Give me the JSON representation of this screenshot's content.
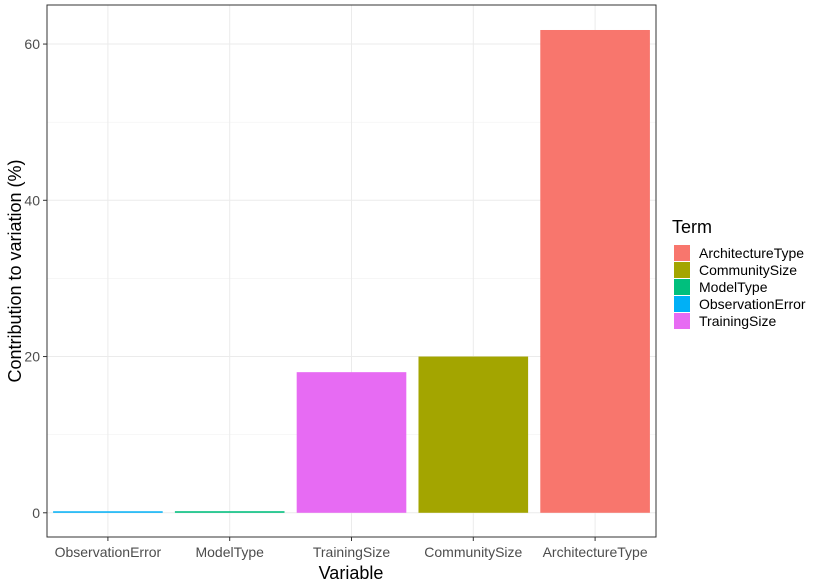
{
  "chart_data": {
    "type": "bar",
    "xlabel": "Variable",
    "ylabel": "Contribution to variation (%)",
    "categories": [
      "ObservationError",
      "ModelType",
      "TrainingSize",
      "CommunitySize",
      "ArchitectureType"
    ],
    "values": [
      0.1,
      0.2,
      18.0,
      20.0,
      61.8
    ],
    "bar_colors": [
      "#00B0F6",
      "#00BF7D",
      "#E76BF3",
      "#A3A500",
      "#F8766D"
    ],
    "ylim": [
      -3.1,
      65
    ],
    "yticks": [
      0,
      20,
      40,
      60
    ],
    "ytick_labels": [
      "0",
      "20",
      "40",
      "60"
    ],
    "grid": true,
    "legend": {
      "title": "Term",
      "position": "right",
      "items": [
        {
          "label": "ArchitectureType",
          "color": "#F8766D"
        },
        {
          "label": "CommunitySize",
          "color": "#A3A500"
        },
        {
          "label": "ModelType",
          "color": "#00BF7D"
        },
        {
          "label": "ObservationError",
          "color": "#00B0F6"
        },
        {
          "label": "TrainingSize",
          "color": "#E76BF3"
        }
      ]
    }
  }
}
